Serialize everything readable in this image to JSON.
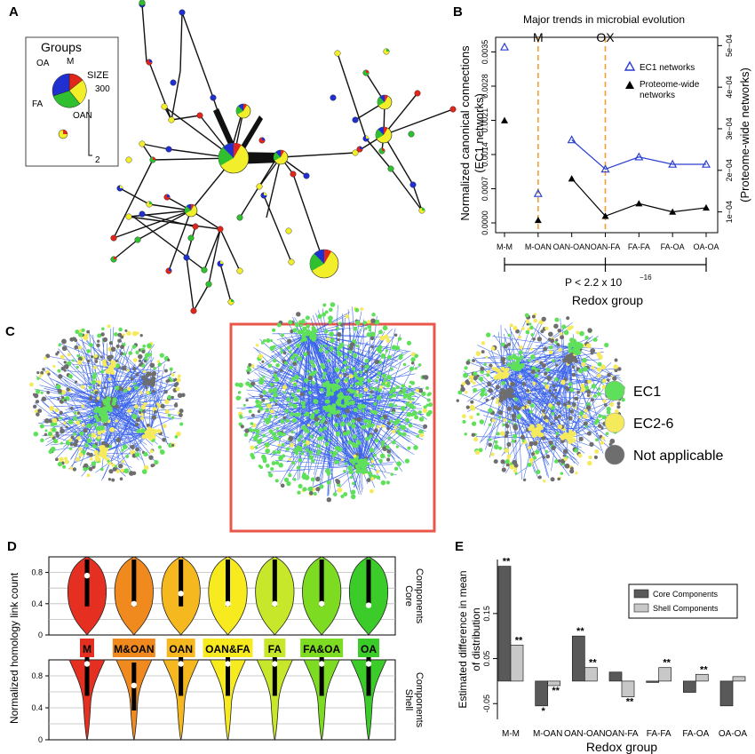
{
  "colors": {
    "M": "#e53021",
    "M&OAN": "#f08a1f",
    "OAN": "#f6b81f",
    "OAN&FA": "#f7ea1f",
    "FA": "#c7e82a",
    "FA&OA": "#7ddc22",
    "OA": "#3ccc2a",
    "blue": "#2030d0",
    "yellow": "#f3ee2a",
    "green": "#2fbf2f",
    "red": "#e0261b",
    "ec1_node": "#5fe05a",
    "ec26_node": "#f5ea5c",
    "na_node": "#6e6e6e",
    "edge_blue": "#1a4ae8",
    "orange_dash": "#f0a030",
    "highlight": "#e8574a"
  },
  "panel_labels": {
    "A": "A",
    "B": "B",
    "C": "C",
    "D": "D",
    "E": "E"
  },
  "panelA": {
    "legend_title": "Groups",
    "groups": [
      "OA",
      "M",
      "FA",
      "OAN"
    ],
    "size_label": "SIZE",
    "size_max": "300",
    "size_min": "2"
  },
  "chart_data": [
    {
      "type": "line",
      "panel": "B",
      "title": "Major trends in microbial evolution",
      "markers": [
        "M",
        "OX"
      ],
      "categories": [
        "M-M",
        "M-OAN",
        "OAN-OAN",
        "OAN-FA",
        "FA-FA",
        "FA-OA",
        "OA-OA"
      ],
      "series": [
        {
          "name": "EC1 networks",
          "axis": "left",
          "values": [
            0.0036,
            0.0006,
            0.0017,
            0.0011,
            0.00135,
            0.0012,
            0.0012
          ],
          "connected_from": "OAN-OAN"
        },
        {
          "name": "Proteome-wide networks",
          "axis": "right",
          "values": [
            0.00032,
            8e-05,
            0.00018,
            9e-05,
            0.00012,
            0.0001,
            0.00011
          ],
          "connected_from": "OAN-OAN"
        }
      ],
      "ylabel": "Normalized canonical connections",
      "ylabel_sub": "(EC1 networks)",
      "y2label": "(Proteome-wide networks)",
      "yticks": [
        "0.0000",
        "0.0007",
        "0.0014",
        "0.0021",
        "0.0028",
        "0.0035"
      ],
      "yticks_values": [
        0,
        0.0007,
        0.0014,
        0.0021,
        0.0028,
        0.0035
      ],
      "ylim": [
        -0.0002,
        0.0038
      ],
      "y2ticks": [
        "1e−04",
        "2e−04",
        "3e−04",
        "4e−04",
        "5e−04"
      ],
      "y2ticks_values": [
        0.0001,
        0.0002,
        0.0003,
        0.0004,
        0.0005
      ],
      "y2lim": [
        5e-05,
        0.00052
      ],
      "pvalue_text": "P < 2.2 x 10",
      "pvalue_exp": "−16",
      "xlabel": "Redox group"
    },
    {
      "type": "network",
      "panel": "C",
      "legend": [
        "EC1",
        "EC2-6",
        "Not applicable"
      ],
      "networks": 3,
      "highlighted": 2
    },
    {
      "type": "violin",
      "panel": "D",
      "categories": [
        "M",
        "M&OAN",
        "OAN",
        "OAN&FA",
        "FA",
        "FA&OA",
        "OA"
      ],
      "ylabel": "Normalized homology link count",
      "core_label_1": "Core",
      "core_label_2": "Components",
      "shell_label_1": "Shell",
      "shell_label_2": "Components",
      "yticks": [
        "0",
        "0.4",
        "0.8"
      ],
      "yticks_values": [
        0,
        0.4,
        0.8
      ],
      "ylim": [
        0,
        1
      ],
      "core_medians": [
        0.76,
        0.4,
        0.53,
        0.4,
        0.4,
        0.4,
        0.38
      ],
      "shell_medians": [
        0.95,
        0.68,
        0.95,
        0.95,
        0.95,
        0.95,
        0.95
      ]
    },
    {
      "type": "bar",
      "panel": "E",
      "categories": [
        "M-M",
        "M-OAN",
        "OAN-OAN",
        "OAN-FA",
        "FA-FA",
        "FA-OA",
        "OA-OA"
      ],
      "series": [
        {
          "name": "Core Components",
          "values": [
            0.255,
            -0.055,
            0.1,
            0.02,
            0.0,
            -0.025,
            -0.055
          ],
          "sig": [
            "**",
            "*",
            "**",
            "",
            "",
            "",
            ""
          ]
        },
        {
          "name": "Shell Components",
          "values": [
            0.08,
            -0.01,
            0.03,
            -0.035,
            0.03,
            0.015,
            0.01
          ],
          "sig": [
            "**",
            "**",
            "**",
            "**",
            "**",
            "**",
            ""
          ]
        }
      ],
      "ylabel": "Estimated difference in mean",
      "ylabel_sub": "of distribution",
      "yticks": [
        "-0.05",
        "0.05",
        "0.15"
      ],
      "yticks_values": [
        -0.05,
        0.05,
        0.15
      ],
      "ylim": [
        -0.085,
        0.27
      ],
      "xlabel": "Redox group"
    }
  ]
}
